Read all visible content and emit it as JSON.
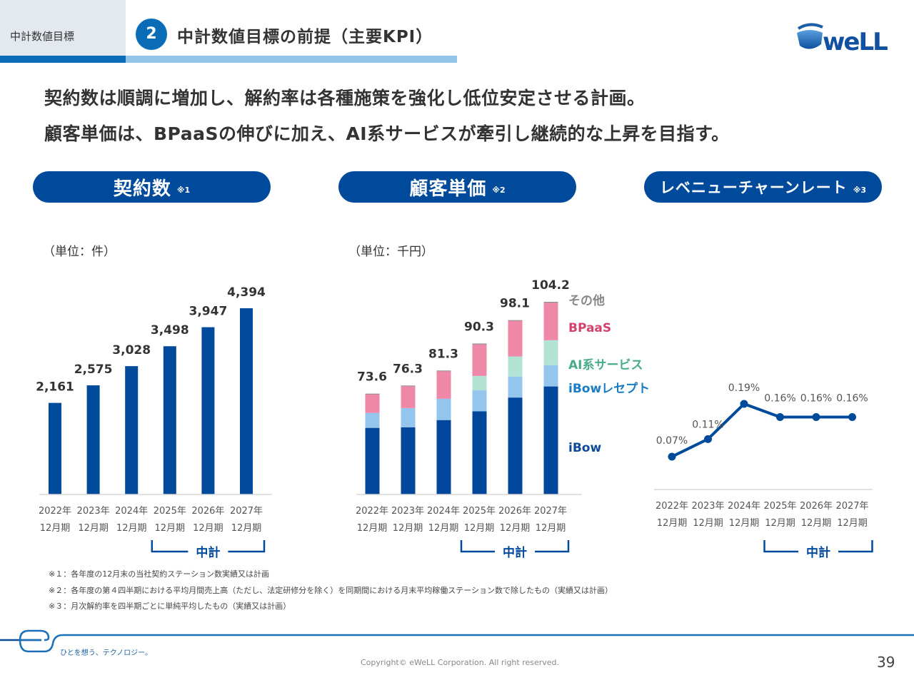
{
  "header": {
    "section_label": "中計数値目標",
    "section_number": "2",
    "title": "中計数値目標の前提（主要KPI）",
    "logo_text": "eWeLL"
  },
  "lead": [
    "契約数は順調に増加し、解約率は各種施策を強化し低位安定させる計画。",
    "顧客単価は、BPaaSの伸びに加え、AI系サービスが牽引し継続的な上昇を目指す。"
  ],
  "panels": [
    {
      "title": "契約数",
      "note": "※1",
      "unit": "（単位：件）"
    },
    {
      "title": "顧客単価",
      "note": "※2",
      "unit": "（単位：千円）"
    },
    {
      "title": "レベニューチャーンレート",
      "note": "※3",
      "unit": ""
    }
  ],
  "midterm_label": "中計",
  "colors": {
    "primary": "#004a9c",
    "ibow": "#00479b",
    "ibow_receipt": "#94c5ec",
    "ai": "#b2e3d4",
    "bpaas": "#ef87a6",
    "other": "#8a8a8a",
    "legend_bpaas": "#d3426e",
    "legend_ai": "#4aab8c",
    "legend_receipt": "#1a7cc4",
    "legend_ibow": "#0e4b96",
    "legend_other": "#888888"
  },
  "chart_data": [
    {
      "type": "bar",
      "title": "契約数",
      "ylabel": "（単位：件）",
      "categories": [
        [
          "2022年",
          "12月期"
        ],
        [
          "2023年",
          "12月期"
        ],
        [
          "2024年",
          "12月期"
        ],
        [
          "2025年",
          "12月期"
        ],
        [
          "2026年",
          "12月期"
        ],
        [
          "2027年",
          "12月期"
        ]
      ],
      "values": [
        2161,
        2575,
        3028,
        3498,
        3947,
        4394
      ],
      "labels": [
        "2,161",
        "2,575",
        "3,028",
        "3,498",
        "3,947",
        "4,394"
      ],
      "ylim": [
        0,
        4800
      ],
      "grid": false,
      "midterm_range": [
        3,
        5
      ]
    },
    {
      "type": "bar",
      "stacked": true,
      "title": "顧客単価",
      "ylabel": "（単位：千円）",
      "categories": [
        [
          "2022年",
          "12月期"
        ],
        [
          "2023年",
          "12月期"
        ],
        [
          "2024年",
          "12月期"
        ],
        [
          "2025年",
          "12月期"
        ],
        [
          "2026年",
          "12月期"
        ],
        [
          "2027年",
          "12月期"
        ]
      ],
      "totals": [
        "73.6",
        "76.3",
        "81.3",
        "90.3",
        "98.1",
        "104.2"
      ],
      "series": [
        {
          "name": "iBow",
          "values": [
            62.2,
            62.4,
            64.8,
            67.7,
            72.3,
            76.0
          ]
        },
        {
          "name": "iBowレセプト",
          "values": [
            5.0,
            6.4,
            7.1,
            7.0,
            7.0,
            7.1
          ]
        },
        {
          "name": "AI系サービス",
          "values": [
            0.0,
            0.0,
            0.0,
            4.8,
            6.7,
            8.3
          ]
        },
        {
          "name": "BPaaS",
          "values": [
            6.2,
            7.3,
            9.2,
            10.5,
            11.9,
            12.5
          ]
        },
        {
          "name": "その他",
          "values": [
            0.2,
            0.2,
            0.2,
            0.3,
            0.2,
            0.3
          ]
        }
      ],
      "legend": [
        "その他",
        "BPaaS",
        "AI系サービス",
        "iBowレセプト",
        "iBow"
      ],
      "legend_placement": "right",
      "ylim": [
        40,
        106
      ],
      "grid": false,
      "midterm_range": [
        3,
        5
      ]
    },
    {
      "type": "line",
      "title": "レベニューチャーンレート",
      "categories": [
        [
          "2022年",
          "12月期"
        ],
        [
          "2023年",
          "12月期"
        ],
        [
          "2024年",
          "12月期"
        ],
        [
          "2025年",
          "12月期"
        ],
        [
          "2026年",
          "12月期"
        ],
        [
          "2027年",
          "12月期"
        ]
      ],
      "values": [
        0.07,
        0.11,
        0.19,
        0.16,
        0.16,
        0.16
      ],
      "labels": [
        "0.07%",
        "0.11%",
        "0.19%",
        "0.16%",
        "0.16%",
        "0.16%"
      ],
      "ylim": [
        0,
        0.22
      ],
      "grid": false,
      "midterm_range": [
        3,
        5
      ]
    }
  ],
  "footnotes": [
    "※１：各年度の12月末の当社契約ステーション数実績又は計画",
    "※２：各年度の第４四半期における平均月間売上高（ただし、法定研修分を除く）を同期間における月末平均稼働ステーション数で除したもの（実績又は計画）",
    "※３：月次解約率を四半期ごとに単純平均したもの（実績又は計画）"
  ],
  "footer": {
    "tagline": "ひとを想う、テクノロジー。",
    "copyright": "Copyright© eWeLL Corporation. All right reserved.",
    "page_number": "39"
  }
}
